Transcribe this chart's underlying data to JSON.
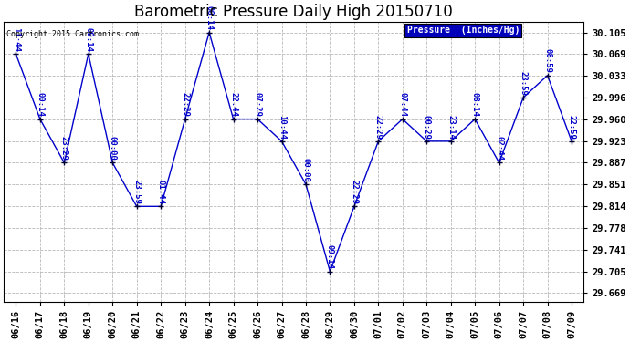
{
  "title": "Barometric Pressure Daily High 20150710",
  "copyright": "Copyright 2015 Cartronics.com",
  "legend_label": "Pressure  (Inches/Hg)",
  "background_color": "#ffffff",
  "grid_color": "#b8b8b8",
  "line_color": "#0000cc",
  "text_color": "#0000cc",
  "dates": [
    "06/16",
    "06/17",
    "06/18",
    "06/19",
    "06/20",
    "06/21",
    "06/22",
    "06/23",
    "06/24",
    "06/25",
    "06/26",
    "06/27",
    "06/28",
    "06/29",
    "06/30",
    "07/01",
    "07/02",
    "07/03",
    "07/04",
    "07/05",
    "07/06",
    "07/07",
    "07/08",
    "07/09"
  ],
  "values": [
    30.069,
    29.96,
    29.887,
    30.069,
    29.887,
    29.814,
    29.814,
    29.96,
    30.105,
    29.96,
    29.96,
    29.923,
    29.851,
    29.705,
    29.814,
    29.923,
    29.96,
    29.923,
    29.923,
    29.96,
    29.887,
    29.996,
    30.033,
    29.923
  ],
  "annotations": [
    "11:44",
    "00:14",
    "23:29",
    "09:14",
    "00:00",
    "23:59",
    "01:44",
    "22:29",
    "08:14",
    "22:44",
    "07:29",
    "10:44",
    "00:00",
    "09:14",
    "22:29",
    "22:29",
    "07:44",
    "00:29",
    "23:14",
    "08:14",
    "02:44",
    "23:59",
    "08:59",
    "22:59"
  ],
  "ylim_low": 29.655,
  "ylim_high": 30.123,
  "yticks": [
    29.669,
    29.705,
    29.741,
    29.778,
    29.814,
    29.851,
    29.887,
    29.923,
    29.96,
    29.996,
    30.033,
    30.069,
    30.105
  ],
  "title_fontsize": 12,
  "annotation_fontsize": 6.5,
  "tick_fontsize": 7.5,
  "legend_facecolor": "#0000bb",
  "legend_text_color": "#ffffff"
}
